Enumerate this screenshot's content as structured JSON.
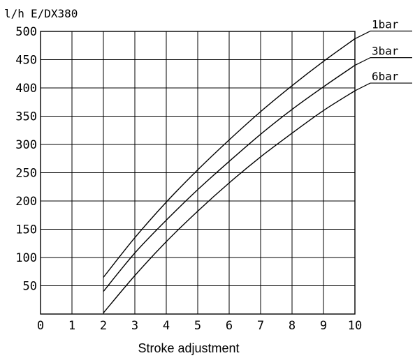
{
  "chart_data": {
    "type": "line",
    "title": "",
    "unit_label": "l/h",
    "model_label": "E/DX380",
    "xlabel": "Stroke adjustment",
    "ylabel": "l/h",
    "xlim": [
      0,
      10
    ],
    "ylim": [
      0,
      500
    ],
    "x_ticks": [
      "0",
      "1",
      "2",
      "3",
      "4",
      "5",
      "6",
      "7",
      "8",
      "9",
      "10"
    ],
    "y_ticks": [
      "50",
      "100",
      "150",
      "200",
      "250",
      "300",
      "350",
      "400",
      "450",
      "500"
    ],
    "grid": true,
    "legend": "curve end labels at right",
    "series": [
      {
        "name": "1bar",
        "x": [
          2,
          3,
          4,
          5,
          6,
          7,
          8,
          9,
          10
        ],
        "values": [
          65,
          135,
          198,
          255,
          308,
          358,
          404,
          447,
          487
        ]
      },
      {
        "name": "3bar",
        "x": [
          2,
          3,
          4,
          5,
          6,
          7,
          8,
          9,
          10
        ],
        "values": [
          40,
          108,
          166,
          220,
          270,
          318,
          362,
          402,
          440
        ]
      },
      {
        "name": "6bar",
        "x": [
          2,
          3,
          4,
          5,
          6,
          7,
          8,
          9,
          10
        ],
        "values": [
          2,
          68,
          128,
          182,
          232,
          278,
          320,
          360,
          395
        ]
      }
    ]
  }
}
